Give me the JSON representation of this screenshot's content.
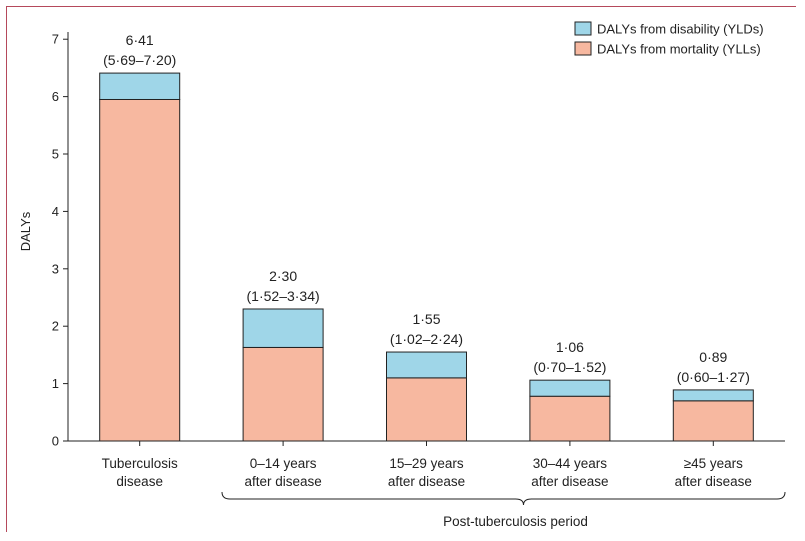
{
  "chart_data": {
    "type": "bar",
    "stacked": true,
    "ylabel": "DALYs",
    "ylim": [
      0,
      7.3
    ],
    "yticks": [
      0,
      1,
      2,
      3,
      4,
      5,
      6,
      7
    ],
    "categories": [
      [
        "Tuberculosis",
        "disease"
      ],
      [
        "0–14 years",
        "after disease"
      ],
      [
        "15–29 years",
        "after disease"
      ],
      [
        "30–44 years",
        "after disease"
      ],
      [
        "≥45 years",
        "after disease"
      ]
    ],
    "series": [
      {
        "name": "DALYs from mortality (YLLs)",
        "color": "#f7b8a0",
        "values": [
          5.95,
          1.63,
          1.1,
          0.78,
          0.7
        ]
      },
      {
        "name": "DALYs from disability (YLDs)",
        "color": "#9fd6e8",
        "values": [
          0.46,
          0.67,
          0.45,
          0.28,
          0.19
        ]
      }
    ],
    "totals": [
      "6·41",
      "2·30",
      "1·55",
      "1·06",
      "0·89"
    ],
    "intervals": [
      "(5·69–7·20)",
      "(1·52–3·34)",
      "(1·02–2·24)",
      "(0·70–1·52)",
      "(0·60–1·27)"
    ],
    "legend_order": [
      "DALYs from disability (YLDs)",
      "DALYs from mortality (YLLs)"
    ],
    "legend_position": "top-right",
    "bracket_label": "Post-tuberculosis period",
    "grid": false
  }
}
